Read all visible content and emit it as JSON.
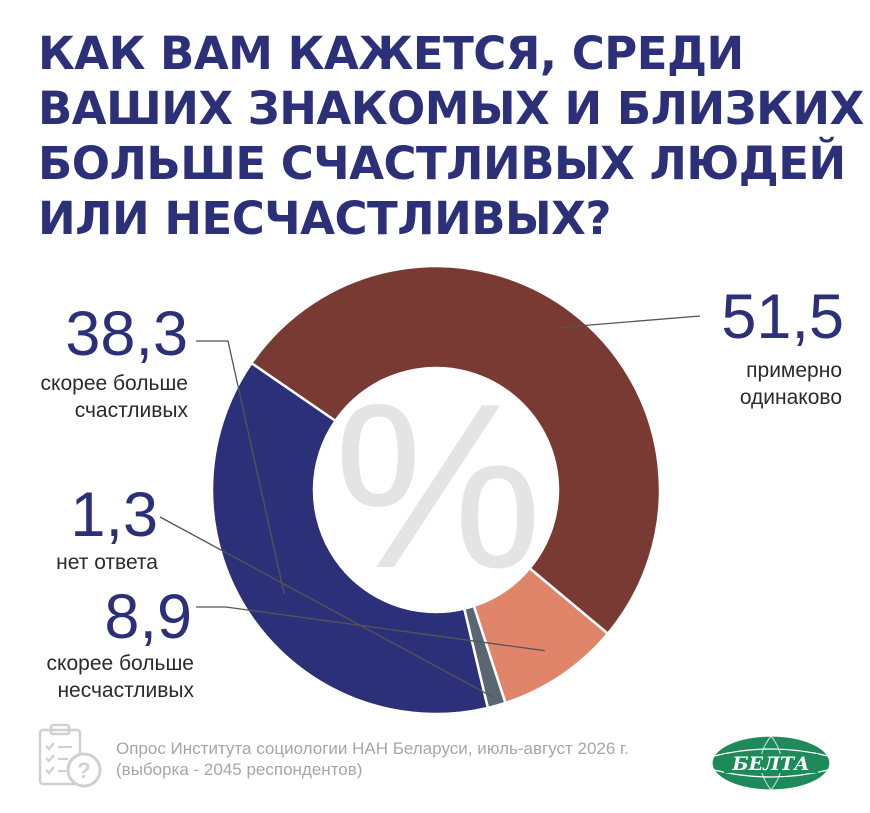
{
  "title_lines": [
    "КАК ВАМ КАЖЕТСЯ, СРЕДИ",
    "ВАШИХ ЗНАКОМЫХ И БЛИЗКИХ",
    "БОЛЬШЕ СЧАСТЛИВЫХ ЛЮДЕЙ",
    "ИЛИ НЕСЧАСТЛИВЫХ?"
  ],
  "chart_data": {
    "type": "pie",
    "donut": true,
    "center_symbol": "%",
    "slices": [
      {
        "value": 51.5,
        "value_label": "51,5",
        "label_lines": [
          "примерно",
          "одинаково"
        ],
        "color": "#7a3a34"
      },
      {
        "value": 8.9,
        "value_label": "8,9",
        "label_lines": [
          "скорее больше",
          "несчастливых"
        ],
        "color": "#e0846a"
      },
      {
        "value": 1.3,
        "value_label": "1,3",
        "label_lines": [
          "нет ответа"
        ],
        "color": "#5a6672"
      },
      {
        "value": 38.3,
        "value_label": "38,3",
        "label_lines": [
          "скорее больше",
          "счастливых"
        ],
        "color": "#2b3078"
      }
    ]
  },
  "source": {
    "line1": "Опрос Института социологии НАН Беларуси, июль-август 2026 г.",
    "line2": "(выборка - 2045 респондентов)"
  },
  "logo": {
    "text": "БЕЛТА",
    "color": "#1e8a5a"
  },
  "icons": {
    "survey": "survey-clipboard-icon"
  }
}
